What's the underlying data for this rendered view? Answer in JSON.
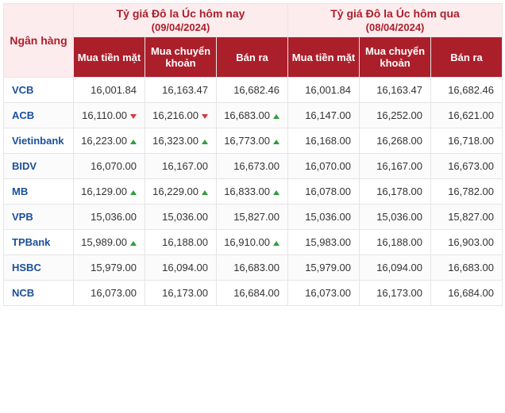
{
  "headers": {
    "bank": "Ngân hàng",
    "today": {
      "title": "Tỷ giá Đô la Úc hôm nay",
      "date": "(09/04/2024)"
    },
    "yesterday": {
      "title": "Tỷ giá Đô la Úc hôm qua",
      "date": "(08/04/2024)"
    },
    "sub": {
      "cash": "Mua tiền mặt",
      "transfer": "Mua chuyển khoản",
      "sell": "Bán ra"
    }
  },
  "style": {
    "brand_bg": "#ab1f2b",
    "brand_bg_alt": "#c8434e",
    "brand_light": "#fdecee",
    "up_color": "#2e9e3f",
    "down_color": "#d23b3b",
    "bank_color": "#1a4f9c",
    "border_color": "#e5e5e5"
  },
  "rows": [
    {
      "bank": "VCB",
      "today": {
        "cash": {
          "v": "16,001.84"
        },
        "transfer": {
          "v": "16,163.47"
        },
        "sell": {
          "v": "16,682.46"
        }
      },
      "yest": {
        "cash": "16,001.84",
        "transfer": "16,163.47",
        "sell": "16,682.46"
      }
    },
    {
      "bank": "ACB",
      "today": {
        "cash": {
          "v": "16,110.00",
          "t": "down"
        },
        "transfer": {
          "v": "16,216.00",
          "t": "down"
        },
        "sell": {
          "v": "16,683.00",
          "t": "up"
        }
      },
      "yest": {
        "cash": "16,147.00",
        "transfer": "16,252.00",
        "sell": "16,621.00"
      }
    },
    {
      "bank": "Vietinbank",
      "today": {
        "cash": {
          "v": "16,223.00",
          "t": "up"
        },
        "transfer": {
          "v": "16,323.00",
          "t": "up"
        },
        "sell": {
          "v": "16,773.00",
          "t": "up"
        }
      },
      "yest": {
        "cash": "16,168.00",
        "transfer": "16,268.00",
        "sell": "16,718.00"
      }
    },
    {
      "bank": "BIDV",
      "today": {
        "cash": {
          "v": "16,070.00"
        },
        "transfer": {
          "v": "16,167.00"
        },
        "sell": {
          "v": "16,673.00"
        }
      },
      "yest": {
        "cash": "16,070.00",
        "transfer": "16,167.00",
        "sell": "16,673.00"
      }
    },
    {
      "bank": "MB",
      "today": {
        "cash": {
          "v": "16,129.00",
          "t": "up"
        },
        "transfer": {
          "v": "16,229.00",
          "t": "up"
        },
        "sell": {
          "v": "16,833.00",
          "t": "up"
        }
      },
      "yest": {
        "cash": "16,078.00",
        "transfer": "16,178.00",
        "sell": "16,782.00"
      }
    },
    {
      "bank": "VPB",
      "today": {
        "cash": {
          "v": "15,036.00"
        },
        "transfer": {
          "v": "15,036.00"
        },
        "sell": {
          "v": "15,827.00"
        }
      },
      "yest": {
        "cash": "15,036.00",
        "transfer": "15,036.00",
        "sell": "15,827.00"
      }
    },
    {
      "bank": "TPBank",
      "today": {
        "cash": {
          "v": "15,989.00",
          "t": "up"
        },
        "transfer": {
          "v": "16,188.00"
        },
        "sell": {
          "v": "16,910.00",
          "t": "up"
        }
      },
      "yest": {
        "cash": "15,983.00",
        "transfer": "16,188.00",
        "sell": "16,903.00"
      }
    },
    {
      "bank": "HSBC",
      "today": {
        "cash": {
          "v": "15,979.00"
        },
        "transfer": {
          "v": "16,094.00"
        },
        "sell": {
          "v": "16,683.00"
        }
      },
      "yest": {
        "cash": "15,979.00",
        "transfer": "16,094.00",
        "sell": "16,683.00"
      }
    },
    {
      "bank": "NCB",
      "today": {
        "cash": {
          "v": "16,073.00"
        },
        "transfer": {
          "v": "16,173.00"
        },
        "sell": {
          "v": "16,684.00"
        }
      },
      "yest": {
        "cash": "16,073.00",
        "transfer": "16,173.00",
        "sell": "16,684.00"
      }
    }
  ]
}
